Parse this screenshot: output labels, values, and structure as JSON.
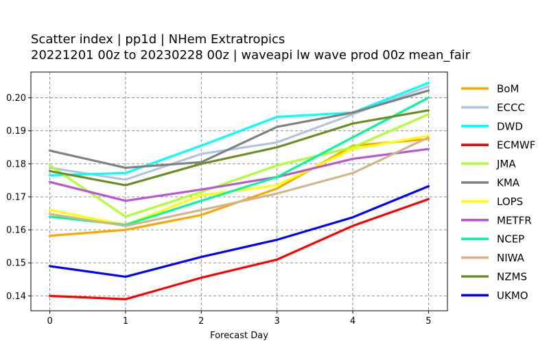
{
  "chart_data": {
    "type": "line",
    "title_lines": [
      "Scatter index  |  pp1d | NHem Extratropics",
      "20221201 00z to 20230228 00z  |  waveapi lw wave prod 00z mean_fair"
    ],
    "xlabel": "Forecast Day",
    "ylabel": "",
    "x": [
      0,
      1,
      2,
      3,
      4,
      5
    ],
    "x_ticks": [
      "0",
      "1",
      "2",
      "3",
      "4",
      "5"
    ],
    "xlim": [
      -0.25,
      5.25
    ],
    "y_ticks": [
      0.14,
      0.15,
      0.16,
      0.17,
      0.18,
      0.19,
      0.2
    ],
    "y_tick_labels": [
      "0.14",
      "0.15",
      "0.16",
      "0.17",
      "0.18",
      "0.19",
      "0.20"
    ],
    "ylim": [
      0.1355,
      0.2078
    ],
    "grid": true,
    "legend_position": "outside-right",
    "series": [
      {
        "name": "BoM",
        "color": "#ffa500",
        "values": [
          0.1582,
          0.16,
          0.1645,
          0.1725,
          0.1855,
          0.1875
        ]
      },
      {
        "name": "ECCC",
        "color": "#b0c4de",
        "values": [
          0.1788,
          0.1752,
          0.183,
          0.1865,
          0.195,
          0.2035
        ]
      },
      {
        "name": "DWD",
        "color": "#00ffff",
        "values": [
          0.1765,
          0.1772,
          0.1855,
          0.1942,
          0.1955,
          0.2045
        ]
      },
      {
        "name": "ECMWF",
        "color": "#ff0000",
        "values": [
          0.14,
          0.139,
          0.1455,
          0.151,
          0.1612,
          0.1693
        ]
      },
      {
        "name": "JMA",
        "color": "#adff2f",
        "values": [
          0.1795,
          0.164,
          0.1715,
          0.1795,
          0.185,
          0.195
        ]
      },
      {
        "name": "KMA",
        "color": "#808080",
        "values": [
          0.184,
          0.1788,
          0.1805,
          0.1912,
          0.1955,
          0.2022
        ]
      },
      {
        "name": "LOPS",
        "color": "#ffff00",
        "values": [
          0.166,
          0.1615,
          0.1705,
          0.1735,
          0.1845,
          0.1885
        ]
      },
      {
        "name": "METFR",
        "color": "#ba55d3",
        "values": [
          0.1745,
          0.1688,
          0.1722,
          0.176,
          0.1815,
          0.1845
        ]
      },
      {
        "name": "NCEP",
        "color": "#00fa9a",
        "values": [
          0.164,
          0.1615,
          0.1688,
          0.176,
          0.188,
          0.2
        ]
      },
      {
        "name": "NIWA",
        "color": "#d2b48c",
        "values": [
          0.1648,
          0.1612,
          0.166,
          0.171,
          0.1772,
          0.188
        ]
      },
      {
        "name": "NZMS",
        "color": "#6b8e23",
        "values": [
          0.1778,
          0.1735,
          0.18,
          0.185,
          0.1922,
          0.1962
        ]
      },
      {
        "name": "UKMO",
        "color": "#0000ff",
        "values": [
          0.149,
          0.1458,
          0.1518,
          0.157,
          0.1638,
          0.1732
        ]
      }
    ]
  }
}
